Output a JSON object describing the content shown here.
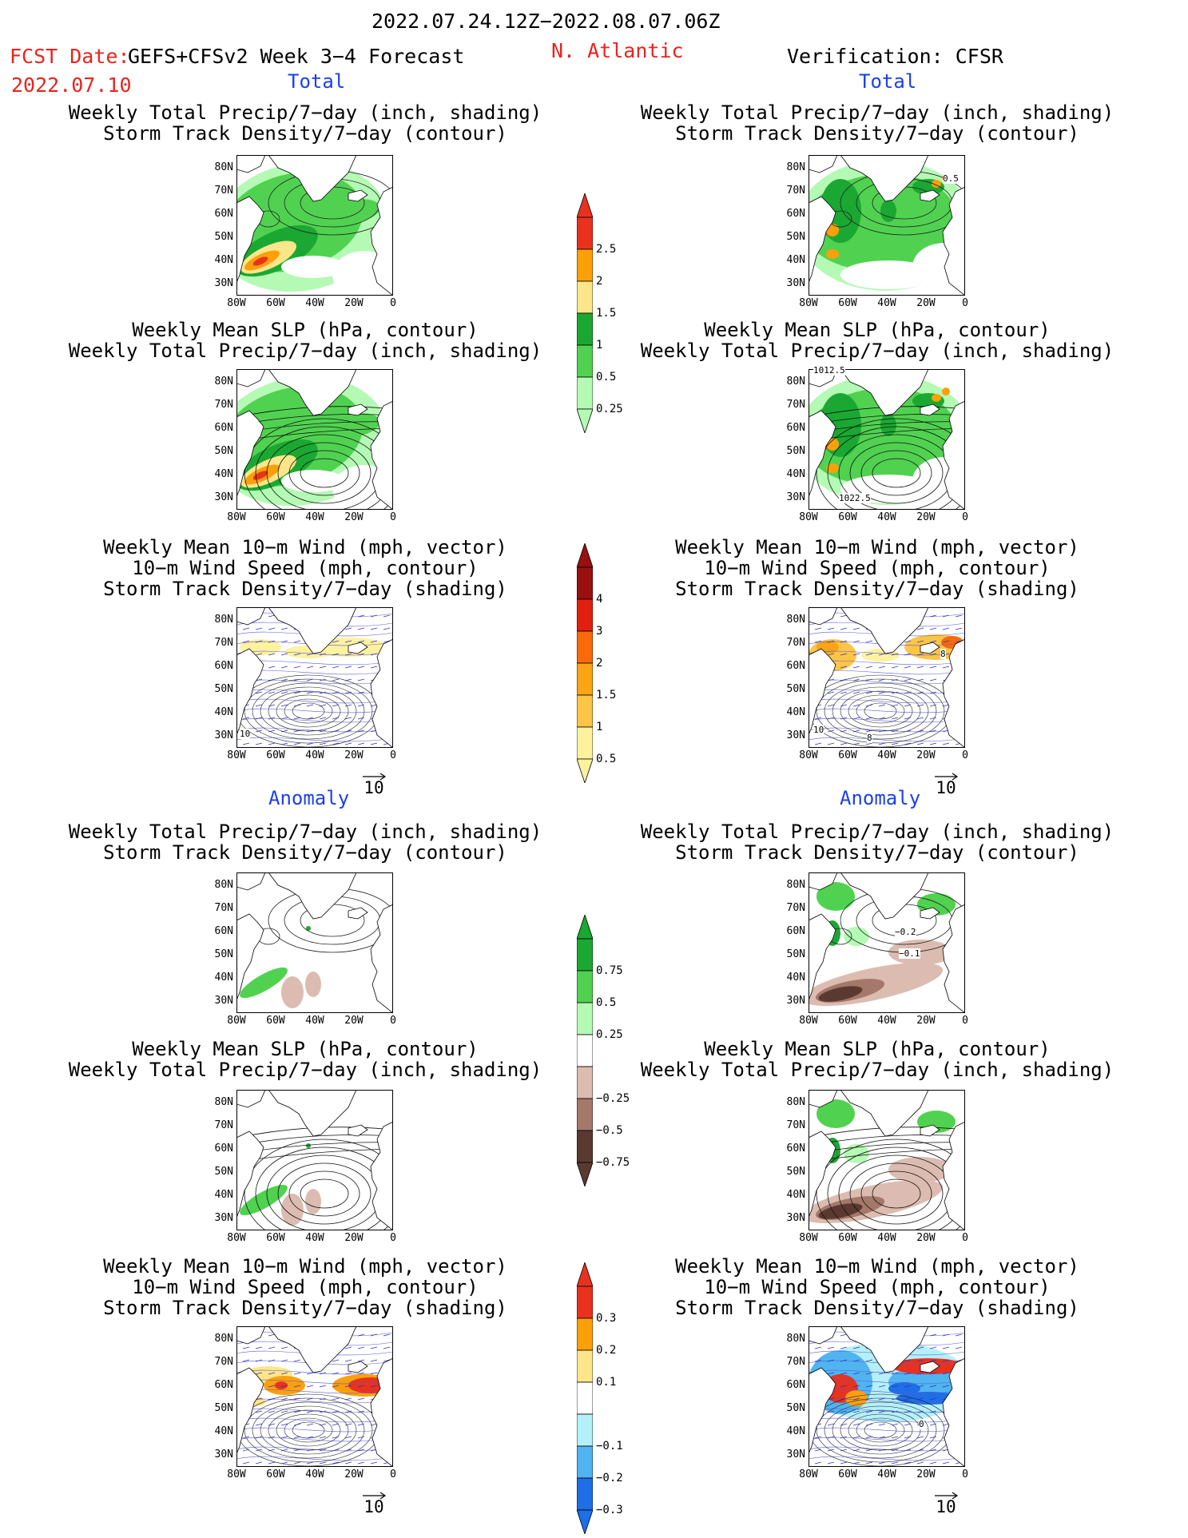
{
  "header": {
    "period": "2022.07.24.12Z−2022.08.07.06Z",
    "fcst_date_label": "FCST Date:",
    "fcst_date": "2022.07.10",
    "model": "GEFS+CFSv2 Week 3−4 Forecast",
    "region": "N. Atlantic",
    "verification": "Verification: CFSR"
  },
  "sections": {
    "total": "Total",
    "anomaly": "Anomaly"
  },
  "titles": {
    "precip_storm": [
      "Weekly Total Precip/7−day (inch, shading)",
      "Storm Track Density/7−day (contour)"
    ],
    "slp_precip": [
      "Weekly Mean SLP (hPa, contour)",
      "Weekly Total Precip/7−day (inch, shading)"
    ],
    "wind_storm": [
      "Weekly Mean 10−m Wind (mph, vector)",
      "10−m Wind Speed (mph, contour)",
      "Storm Track Density/7−day (shading)"
    ]
  },
  "axes": {
    "lat_ticks": [
      "80N",
      "70N",
      "60N",
      "50N",
      "40N",
      "30N"
    ],
    "lon_ticks": [
      "80W",
      "60W",
      "40W",
      "20W",
      "0"
    ],
    "vector_ref": "10"
  },
  "map_labels": {
    "fc_total_wind": "10",
    "obs_total_storm": "0.5",
    "obs_total_slp_top": "1012.5",
    "obs_total_slp_bottom": "1022.5",
    "obs_total_wind_a": "10",
    "obs_total_wind_b": "8",
    "obs_total_wind_c": "8",
    "obs_anom_storm_a": "−0.2",
    "obs_anom_storm_b": "−0.1",
    "obs_anom_wind": "0"
  },
  "colorbars": {
    "total_precip": {
      "labels": [
        "2.5",
        "2",
        "1.5",
        "1",
        "0.5",
        "0.25"
      ],
      "colors": [
        "#e8321e",
        "#fca00a",
        "#fde68a",
        "#1aa832",
        "#50d250",
        "#b4fab4"
      ]
    },
    "storm_track": {
      "labels": [
        "4",
        "3",
        "2",
        "1.5",
        "1",
        "0.5"
      ],
      "colors": [
        "#9a0f0f",
        "#e3200f",
        "#fa6a0a",
        "#fba414",
        "#fcc546",
        "#fef29e"
      ]
    },
    "precip_anomaly": {
      "labels": [
        "0.75",
        "0.5",
        "0.25",
        "−0.25",
        "−0.5",
        "−0.75"
      ],
      "colors": [
        "#1aa832",
        "#50d250",
        "#b4fab4",
        "#ffffff",
        "#dcbcb0",
        "#a4786a",
        "#5a3a30"
      ]
    },
    "storm_anomaly": {
      "labels": [
        "0.3",
        "0.2",
        "0.1",
        "−0.1",
        "−0.2",
        "−0.3"
      ],
      "colors": [
        "#e8321e",
        "#fca00a",
        "#fde68a",
        "#ffffff",
        "#b4f0fa",
        "#50b4f0",
        "#1e6ee6"
      ]
    }
  }
}
